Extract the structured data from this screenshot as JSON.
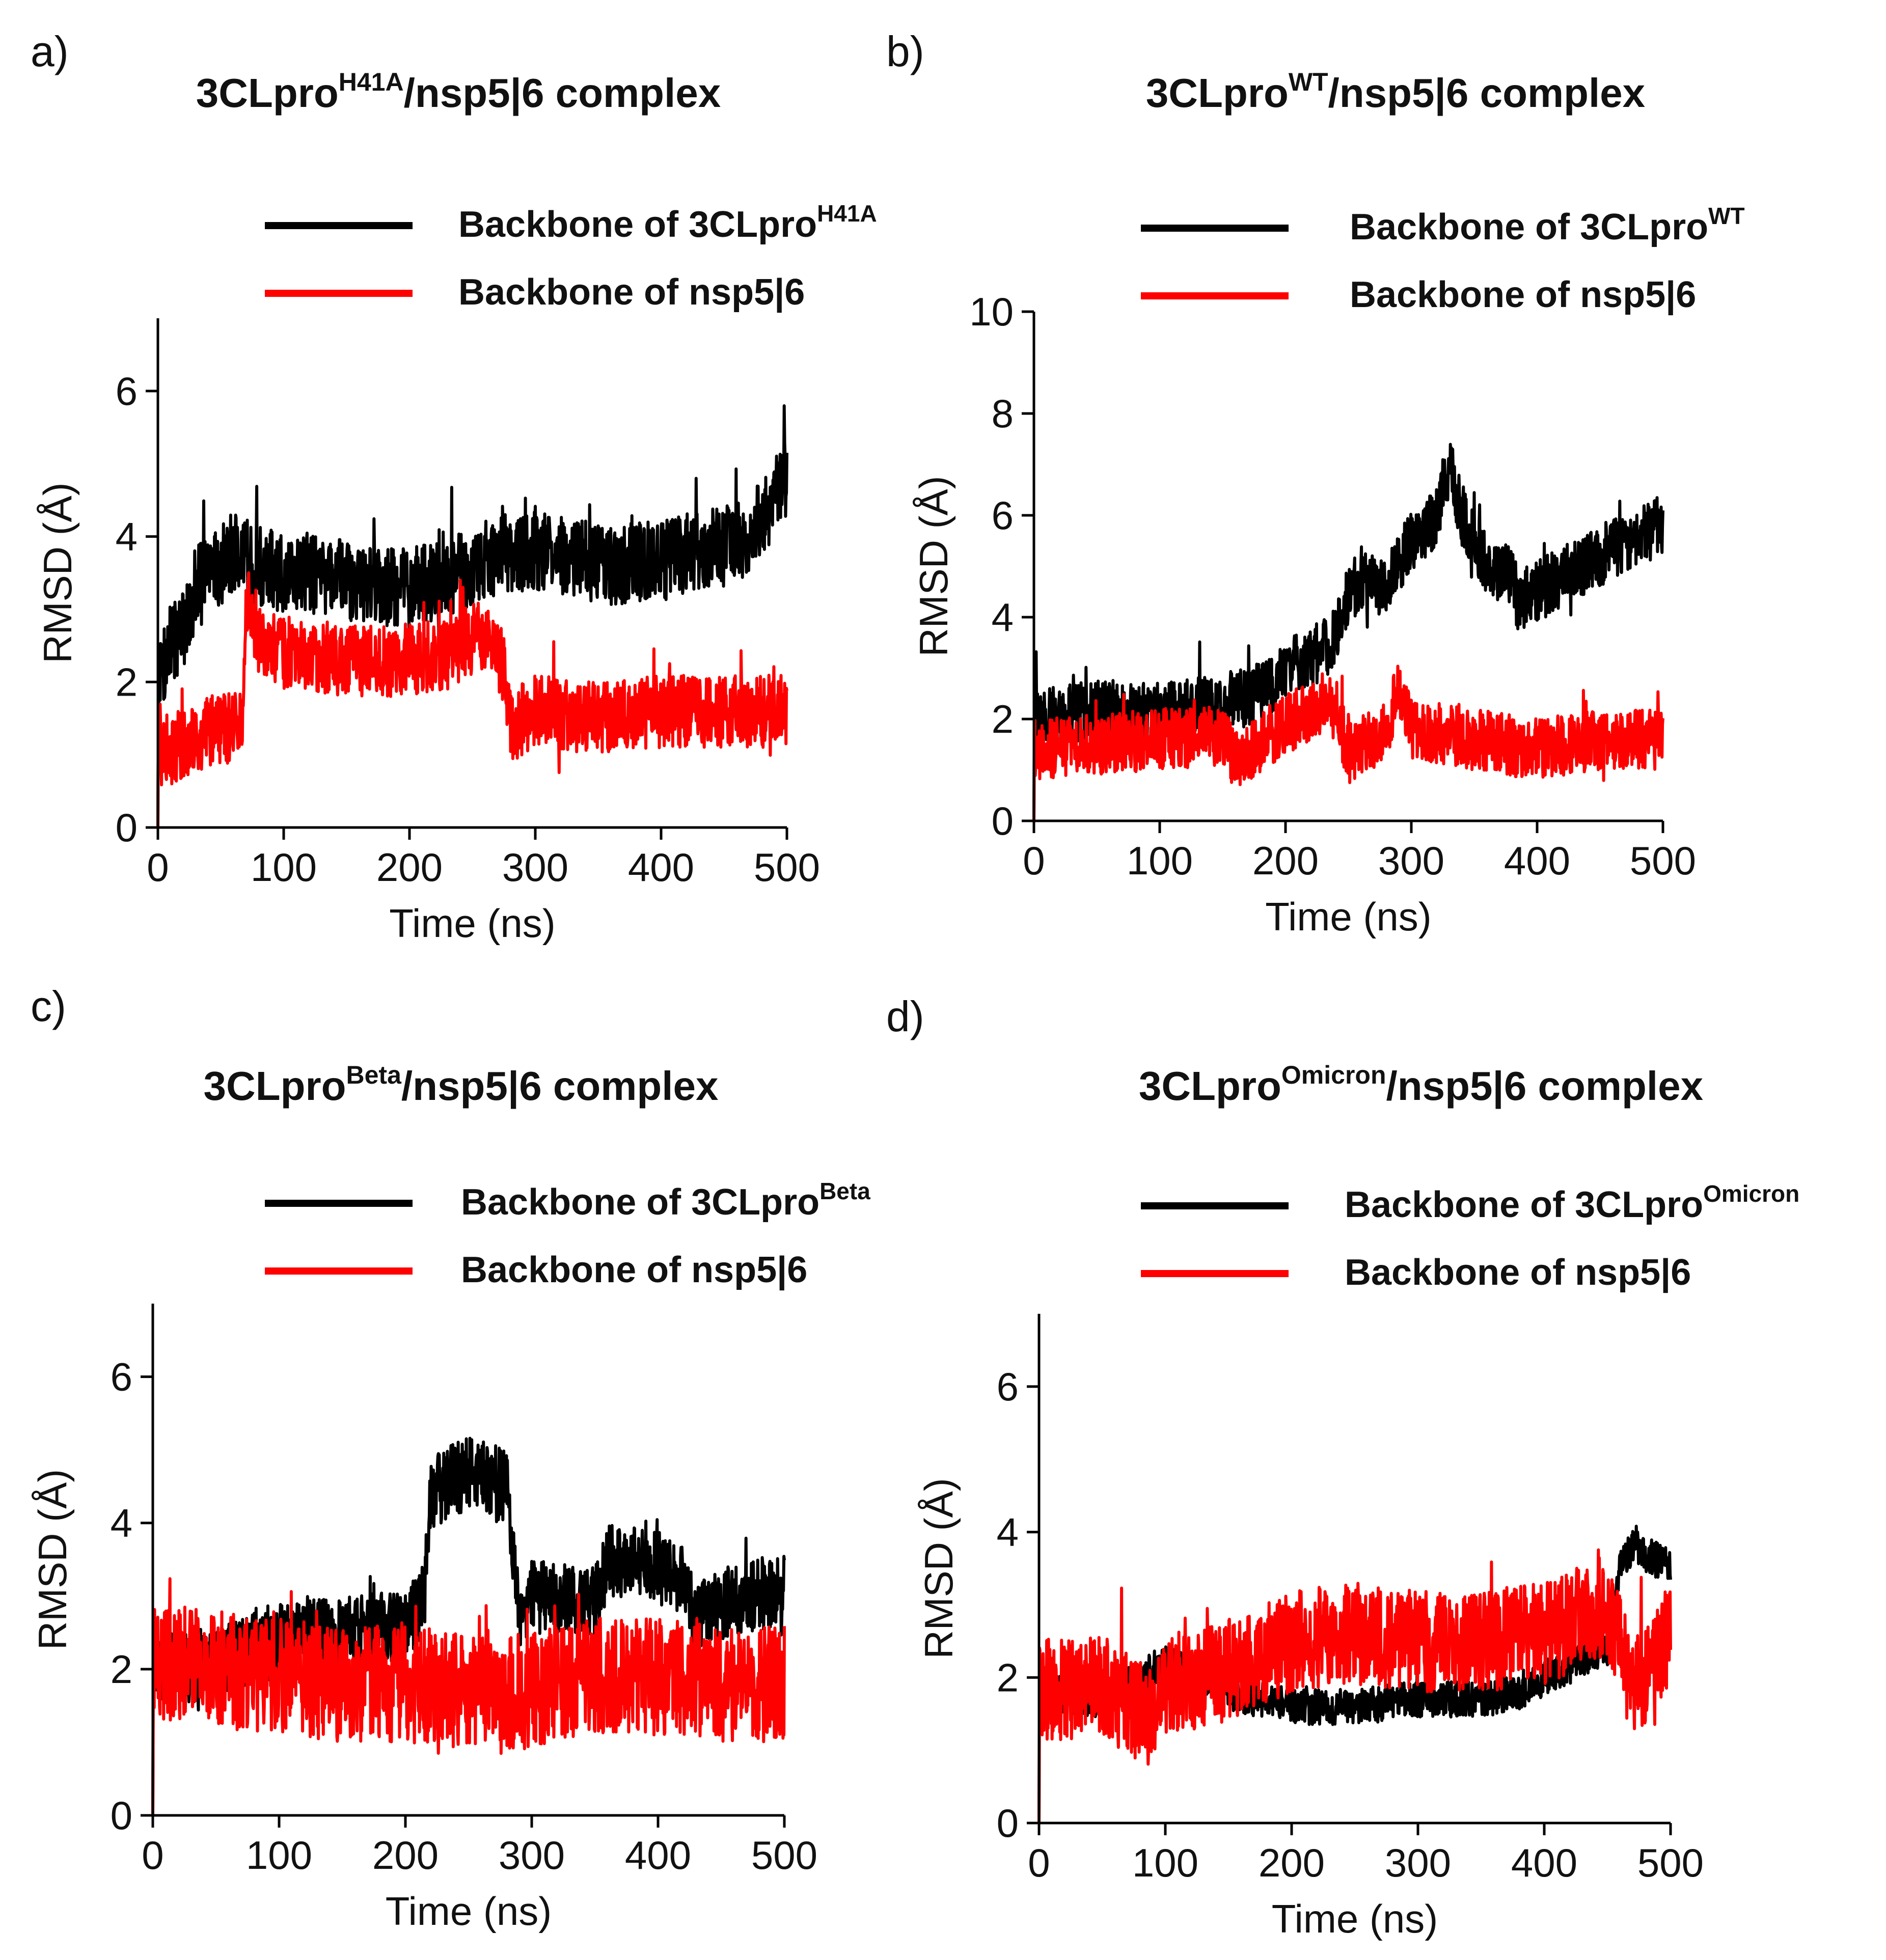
{
  "figure": {
    "panels": [
      {
        "label": "a)",
        "title": {
          "main": "3CLpro",
          "sup": "H41A",
          "rest": "/nsp5|6 complex"
        },
        "legend": [
          {
            "text": "Backbone of 3CLpro",
            "sup": "H41A",
            "color": "#000000"
          },
          {
            "text": "Backbone of nsp5|6",
            "sup": "",
            "color": "#ff0000"
          }
        ]
      },
      {
        "label": "b)",
        "title": {
          "main": "3CLpro",
          "sup": "WT",
          "rest": "/nsp5|6 complex"
        },
        "legend": [
          {
            "text": "Backbone of 3CLpro",
            "sup": "WT",
            "color": "#000000"
          },
          {
            "text": "Backbone of nsp5|6",
            "sup": "",
            "color": "#ff0000"
          }
        ]
      },
      {
        "label": "c)",
        "title": {
          "main": "3CLpro",
          "sup": "Beta",
          "rest": "/nsp5|6 complex"
        },
        "legend": [
          {
            "text": "Backbone of 3CLpro",
            "sup": "Beta",
            "color": "#000000"
          },
          {
            "text": "Backbone of nsp5|6",
            "sup": "",
            "color": "#ff0000"
          }
        ]
      },
      {
        "label": "d)",
        "title": {
          "main": "3CLpro",
          "sup": "Omicron",
          "rest": "/nsp5|6 complex"
        },
        "legend": [
          {
            "text": "Backbone of 3CLpro",
            "sup": "Omicron",
            "color": "#000000"
          },
          {
            "text": "Backbone of nsp5|6",
            "sup": "",
            "color": "#ff0000"
          }
        ]
      }
    ]
  },
  "chart_data": [
    {
      "type": "line",
      "title": "3CLproH41A/nsp5|6 complex",
      "xlabel": "Time (ns)",
      "ylabel": "RMSD (Å)",
      "xlim": [
        0,
        500
      ],
      "ylim": [
        0,
        7
      ],
      "xticks": [
        0,
        100,
        200,
        300,
        400,
        500
      ],
      "yticks": [
        0,
        2,
        4,
        6
      ],
      "series": [
        {
          "name": "Backbone of 3CLproH41A",
          "color": "#000000",
          "x": [
            0,
            10,
            20,
            30,
            40,
            50,
            60,
            70,
            80,
            100,
            120,
            150,
            180,
            200,
            220,
            250,
            280,
            300,
            330,
            360,
            400,
            430,
            460,
            480,
            490,
            500
          ],
          "y": [
            2.0,
            2.5,
            2.7,
            3.3,
            3.5,
            3.6,
            3.8,
            3.7,
            3.6,
            3.5,
            3.5,
            3.4,
            3.3,
            3.3,
            3.4,
            3.6,
            3.8,
            3.8,
            3.7,
            3.6,
            3.7,
            3.8,
            3.9,
            4.2,
            4.6,
            4.8
          ],
          "noise": 0.55
        },
        {
          "name": "Backbone of nsp5|6",
          "color": "#ff0000",
          "x": [
            0,
            10,
            20,
            40,
            60,
            68,
            70,
            80,
            100,
            150,
            200,
            230,
            250,
            265,
            275,
            280,
            300,
            350,
            400,
            450,
            500
          ],
          "y": [
            1.3,
            1.0,
            1.2,
            1.3,
            1.4,
            1.6,
            3.0,
            2.6,
            2.4,
            2.3,
            2.3,
            2.4,
            2.6,
            2.6,
            2.2,
            1.4,
            1.6,
            1.5,
            1.6,
            1.6,
            1.6
          ],
          "noise": 0.5
        }
      ]
    },
    {
      "type": "line",
      "title": "3CLproWT/nsp5|6 complex",
      "xlabel": "Time (ns)",
      "ylabel": "RMSD (Å)",
      "xlim": [
        0,
        500
      ],
      "ylim": [
        0,
        10
      ],
      "xticks": [
        0,
        100,
        200,
        300,
        400,
        500
      ],
      "yticks": [
        0,
        2,
        4,
        6,
        8,
        10
      ],
      "series": [
        {
          "name": "Backbone of 3CLproWT",
          "color": "#000000",
          "x": [
            0,
            20,
            50,
            100,
            150,
            190,
            200,
            220,
            240,
            245,
            260,
            280,
            300,
            320,
            330,
            340,
            360,
            380,
            385,
            400,
            420,
            450,
            480,
            500
          ],
          "y": [
            1.9,
            2.1,
            2.2,
            2.1,
            2.3,
            2.6,
            3.0,
            3.2,
            3.6,
            4.2,
            4.8,
            4.6,
            5.5,
            6.0,
            7.0,
            6.0,
            5.0,
            4.8,
            4.3,
            4.5,
            4.8,
            5.2,
            5.6,
            5.8
          ],
          "noise": 0.6
        },
        {
          "name": "Backbone of nsp5|6",
          "color": "#ff0000",
          "x": [
            0,
            50,
            100,
            150,
            160,
            200,
            230,
            240,
            250,
            280,
            290,
            300,
            350,
            400,
            450,
            500
          ],
          "y": [
            1.4,
            1.5,
            1.6,
            1.7,
            1.2,
            1.9,
            2.3,
            2.2,
            1.3,
            1.8,
            2.6,
            1.8,
            1.6,
            1.4,
            1.6,
            1.6
          ],
          "noise": 0.6
        }
      ]
    },
    {
      "type": "line",
      "title": "3CLproBeta/nsp5|6 complex",
      "xlabel": "Time (ns)",
      "ylabel": "RMSD (Å)",
      "xlim": [
        0,
        500
      ],
      "ylim": [
        0,
        7
      ],
      "xticks": [
        0,
        100,
        200,
        300,
        400,
        500
      ],
      "yticks": [
        0,
        2,
        4,
        6
      ],
      "series": [
        {
          "name": "Backbone of 3CLproBeta",
          "color": "#000000",
          "x": [
            0,
            20,
            50,
            100,
            150,
            200,
            215,
            220,
            250,
            280,
            290,
            300,
            350,
            360,
            400,
            420,
            430,
            450,
            500
          ],
          "y": [
            2.0,
            2.0,
            2.1,
            2.4,
            2.5,
            2.6,
            3.0,
            4.4,
            4.7,
            4.5,
            2.8,
            3.0,
            2.9,
            3.5,
            3.4,
            3.2,
            2.7,
            2.9,
            3.1
          ],
          "noise": 0.5
        },
        {
          "name": "Backbone of nsp5|6",
          "color": "#ff0000",
          "x": [
            0,
            50,
            100,
            150,
            200,
            250,
            300,
            350,
            400,
            450,
            500
          ],
          "y": [
            2.1,
            2.0,
            1.9,
            1.8,
            1.8,
            1.7,
            1.7,
            1.9,
            1.9,
            1.8,
            1.8
          ],
          "noise": 0.8
        }
      ]
    },
    {
      "type": "line",
      "title": "3CLproOmicron/nsp5|6 complex",
      "xlabel": "Time (ns)",
      "ylabel": "RMSD (Å)",
      "xlim": [
        0,
        500
      ],
      "ylim": [
        0,
        7
      ],
      "xticks": [
        0,
        100,
        200,
        300,
        400,
        500
      ],
      "yticks": [
        0,
        2,
        4,
        6
      ],
      "series": [
        {
          "name": "Backbone of 3CLproOmicron",
          "color": "#000000",
          "x": [
            0,
            50,
            80,
            100,
            150,
            200,
            250,
            300,
            350,
            380,
            400,
            450,
            460,
            470,
            500
          ],
          "y": [
            1.8,
            1.7,
            2.0,
            2.2,
            1.8,
            1.6,
            1.6,
            1.7,
            1.7,
            1.8,
            2.0,
            2.4,
            3.5,
            3.8,
            3.5
          ],
          "noise": 0.25
        },
        {
          "name": "Backbone of nsp5|6",
          "color": "#ff0000",
          "x": [
            0,
            50,
            90,
            100,
            150,
            200,
            250,
            300,
            350,
            400,
            450,
            470,
            500
          ],
          "y": [
            1.8,
            1.9,
            1.4,
            1.9,
            2.1,
            2.5,
            2.6,
            2.5,
            2.5,
            2.6,
            3.0,
            1.8,
            2.6
          ],
          "noise": 0.7
        }
      ]
    }
  ]
}
